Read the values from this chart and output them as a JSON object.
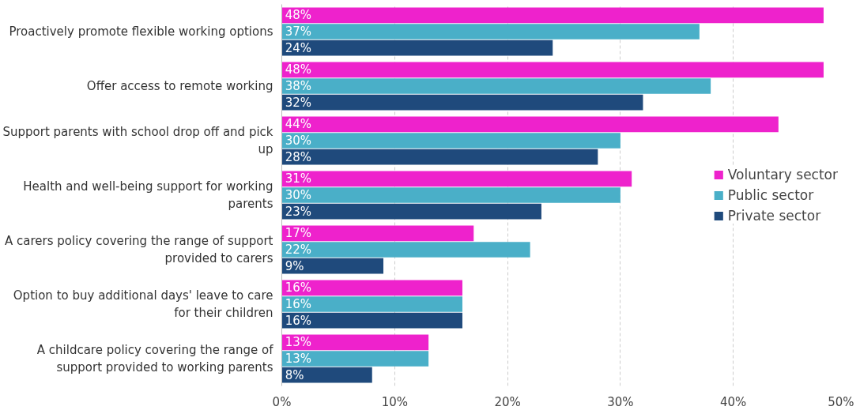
{
  "chart_data": {
    "type": "bar",
    "orientation": "horizontal",
    "categories": [
      "Proactively promote flexible working options",
      "Offer access to remote working",
      "Support parents with school drop off and pick up",
      "Health and well-being support for working parents",
      "A carers policy covering the range of support provided to carers",
      "Option to buy additional days' leave to care for their children",
      "A childcare policy covering the range of support provided to working parents"
    ],
    "series": [
      {
        "name": "Voluntary sector",
        "color": "#ee22cc",
        "values": [
          48,
          48,
          44,
          31,
          17,
          16,
          13
        ],
        "value_labels": [
          "48%",
          "48%",
          "44%",
          "31%",
          "17%",
          "16%",
          "13%"
        ]
      },
      {
        "name": "Public sector",
        "color": "#4aafc8",
        "values": [
          37,
          38,
          30,
          30,
          22,
          16,
          13
        ],
        "value_labels": [
          "37%",
          "38%",
          "30%",
          "30%",
          "22%",
          "16%",
          "13%"
        ]
      },
      {
        "name": "Private sector",
        "color": "#1f4a7c",
        "values": [
          24,
          32,
          28,
          23,
          9,
          16,
          8
        ],
        "value_labels": [
          "24%",
          "32%",
          "28%",
          "23%",
          "9%",
          "16%",
          "8%"
        ]
      }
    ],
    "xlim": [
      0,
      50
    ],
    "xticks": [
      {
        "value": 0,
        "label": "0%"
      },
      {
        "value": 10,
        "label": "10%"
      },
      {
        "value": 20,
        "label": "20%"
      },
      {
        "value": 30,
        "label": "30%"
      },
      {
        "value": 40,
        "label": "40%"
      },
      {
        "value": 50,
        "label": "50%"
      }
    ],
    "grid": "x",
    "legend": "right"
  }
}
